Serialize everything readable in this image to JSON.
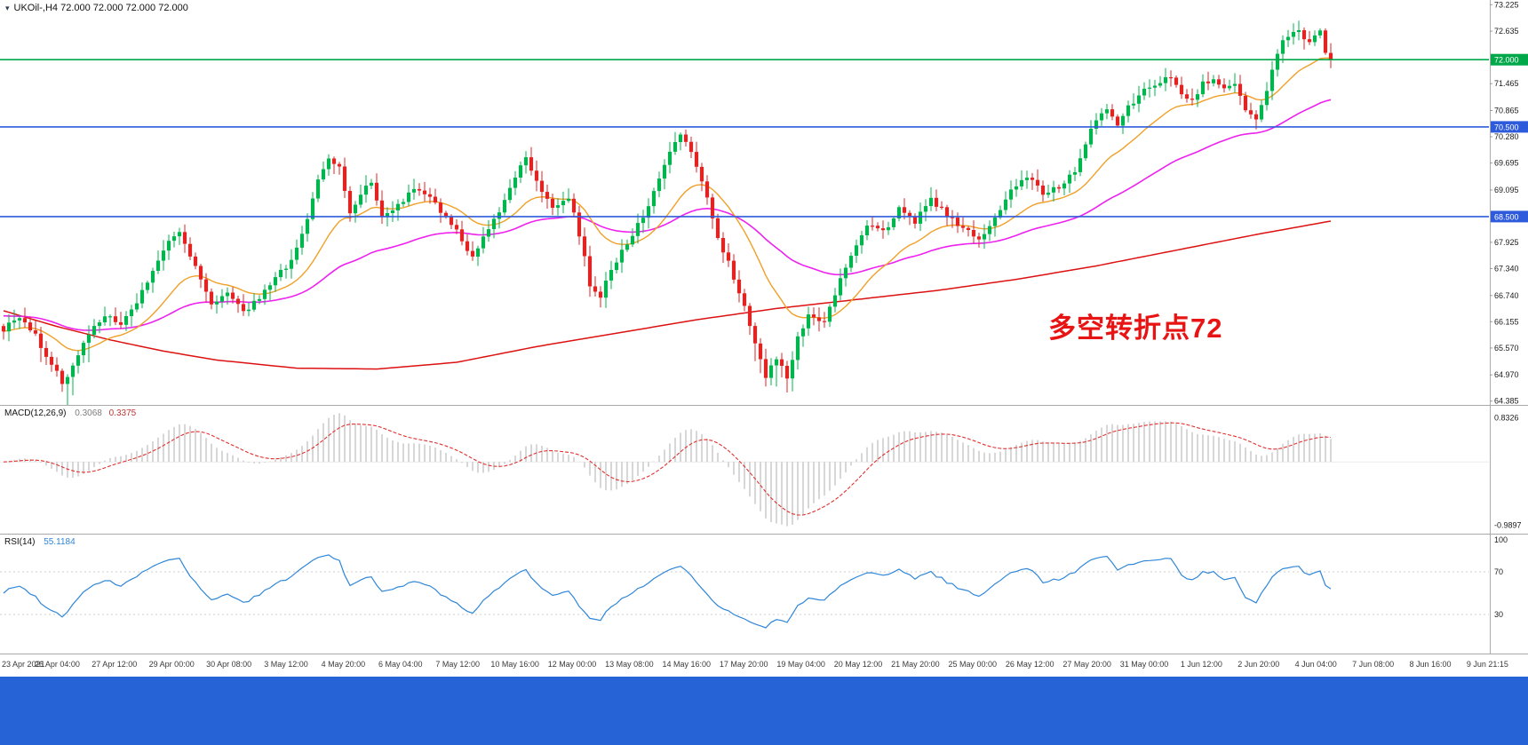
{
  "main_chart": {
    "title": "UKOil-,H4   72.000 72.000 72.000 72.000",
    "marker_icon": "▾",
    "annotation": {
      "text": "多空转折点72",
      "color": "#e81414"
    }
  },
  "chart_data": {
    "type": "candlestick",
    "symbol": "UKOil-",
    "timeframe": "H4",
    "current_ohlc": {
      "open": "72.000",
      "high": "72.000",
      "low": "72.000",
      "close": "72.000"
    },
    "bars": 250,
    "up_color": "#00b44e",
    "down_color": "#e32222",
    "price_axis": {
      "range": [
        64.32,
        73.33
      ],
      "ticks": [
        "73.225",
        "72.635",
        "71.465",
        "70.865",
        "70.280",
        "69.695",
        "69.095",
        "67.925",
        "67.340",
        "66.740",
        "66.155",
        "65.570",
        "64.970",
        "64.385"
      ]
    },
    "horizontal_lines": [
      {
        "price": 72.0,
        "label": "72.000",
        "color": "#00a84a"
      },
      {
        "price": 70.5,
        "label": "70.500",
        "color": "#2e5bdc"
      },
      {
        "price": 68.5,
        "label": "68.500",
        "color": "#2e5bdc"
      }
    ],
    "close_path_anchors": [
      [
        0,
        66.0
      ],
      [
        3,
        66.25
      ],
      [
        6,
        65.85
      ],
      [
        9,
        65.2
      ],
      [
        11,
        64.8
      ],
      [
        13,
        65.15
      ],
      [
        16,
        65.9
      ],
      [
        19,
        66.3
      ],
      [
        22,
        66.05
      ],
      [
        25,
        66.6
      ],
      [
        28,
        67.3
      ],
      [
        31,
        67.9
      ],
      [
        33,
        68.15
      ],
      [
        35,
        67.6
      ],
      [
        37,
        67.1
      ],
      [
        39,
        66.6
      ],
      [
        42,
        66.75
      ],
      [
        45,
        66.35
      ],
      [
        48,
        66.7
      ],
      [
        51,
        67.1
      ],
      [
        54,
        67.55
      ],
      [
        57,
        68.4
      ],
      [
        59,
        69.3
      ],
      [
        61,
        69.8
      ],
      [
        63,
        69.55
      ],
      [
        65,
        68.6
      ],
      [
        67,
        69.0
      ],
      [
        69,
        69.3
      ],
      [
        71,
        68.5
      ],
      [
        74,
        68.75
      ],
      [
        77,
        69.15
      ],
      [
        80,
        68.9
      ],
      [
        83,
        68.5
      ],
      [
        86,
        68.0
      ],
      [
        88,
        67.6
      ],
      [
        90,
        68.0
      ],
      [
        93,
        68.6
      ],
      [
        96,
        69.4
      ],
      [
        98,
        69.85
      ],
      [
        100,
        69.3
      ],
      [
        103,
        68.7
      ],
      [
        106,
        68.95
      ],
      [
        108,
        68.1
      ],
      [
        110,
        67.0
      ],
      [
        112,
        66.75
      ],
      [
        114,
        67.3
      ],
      [
        117,
        67.9
      ],
      [
        120,
        68.5
      ],
      [
        123,
        69.4
      ],
      [
        125,
        69.95
      ],
      [
        127,
        70.3
      ],
      [
        129,
        69.95
      ],
      [
        131,
        69.35
      ],
      [
        133,
        68.4
      ],
      [
        135,
        67.75
      ],
      [
        137,
        67.15
      ],
      [
        139,
        66.55
      ],
      [
        141,
        65.7
      ],
      [
        143,
        64.95
      ],
      [
        145,
        65.35
      ],
      [
        147,
        64.9
      ],
      [
        149,
        65.8
      ],
      [
        151,
        66.35
      ],
      [
        154,
        66.1
      ],
      [
        157,
        67.1
      ],
      [
        160,
        67.9
      ],
      [
        162,
        68.35
      ],
      [
        165,
        68.15
      ],
      [
        168,
        68.65
      ],
      [
        171,
        68.4
      ],
      [
        174,
        68.85
      ],
      [
        177,
        68.55
      ],
      [
        180,
        68.25
      ],
      [
        183,
        67.95
      ],
      [
        186,
        68.45
      ],
      [
        189,
        69.1
      ],
      [
        192,
        69.4
      ],
      [
        195,
        69.0
      ],
      [
        198,
        69.15
      ],
      [
        201,
        69.55
      ],
      [
        203,
        70.1
      ],
      [
        205,
        70.7
      ],
      [
        207,
        70.95
      ],
      [
        209,
        70.5
      ],
      [
        211,
        70.95
      ],
      [
        213,
        71.2
      ],
      [
        216,
        71.45
      ],
      [
        219,
        71.6
      ],
      [
        221,
        71.2
      ],
      [
        223,
        71.05
      ],
      [
        225,
        71.45
      ],
      [
        227,
        71.6
      ],
      [
        229,
        71.3
      ],
      [
        231,
        71.5
      ],
      [
        233,
        70.85
      ],
      [
        235,
        70.7
      ],
      [
        237,
        71.3
      ],
      [
        239,
        72.2
      ],
      [
        241,
        72.55
      ],
      [
        243,
        72.6
      ],
      [
        245,
        72.45
      ],
      [
        247,
        72.65
      ],
      [
        248,
        72.15
      ],
      [
        249,
        72.0
      ]
    ],
    "moving_averages": [
      {
        "name": "slow-red",
        "color": "#dd1111",
        "width": 1.5,
        "anchors": [
          [
            0,
            66.4
          ],
          [
            10,
            66.05
          ],
          [
            20,
            65.75
          ],
          [
            30,
            65.5
          ],
          [
            40,
            65.3
          ],
          [
            55,
            65.12
          ],
          [
            70,
            65.1
          ],
          [
            85,
            65.25
          ],
          [
            100,
            65.6
          ],
          [
            115,
            65.9
          ],
          [
            130,
            66.2
          ],
          [
            145,
            66.45
          ],
          [
            160,
            66.65
          ],
          [
            175,
            66.85
          ],
          [
            190,
            67.1
          ],
          [
            205,
            67.4
          ],
          [
            220,
            67.75
          ],
          [
            235,
            68.1
          ],
          [
            249,
            68.4
          ]
        ]
      },
      {
        "name": "mid-magenta",
        "color": "#ee22ee",
        "width": 1.6,
        "period": 55,
        "seed": 66.3
      },
      {
        "name": "fast-orange",
        "color": "#f0a028",
        "width": 1.4,
        "period": 18
      }
    ],
    "macd": {
      "fast": 12,
      "slow": 26,
      "signal": 9
    },
    "rsi": {
      "period": 14,
      "levels": [
        70,
        30
      ]
    }
  },
  "macd_panel": {
    "title": "MACD(12,26,9)",
    "main_value": "0.3068",
    "signal_value": "0.3375",
    "axis_max": "0.8326",
    "axis_min": "-0.9897",
    "histogram_color": "#c6c6c6",
    "signal_color": "#e03030"
  },
  "rsi_panel": {
    "title": "RSI(14)",
    "value": "55.1184",
    "line_color": "#2f86d8",
    "axis_labels": [
      {
        "text": "100",
        "value": 100
      },
      {
        "text": "70",
        "value": 70
      },
      {
        "text": "30",
        "value": 30
      }
    ]
  },
  "time_axis": {
    "labels": [
      "23 Apr 2021",
      "26 Apr 04:00",
      "27 Apr 12:00",
      "29 Apr 00:00",
      "30 Apr 08:00",
      "3 May 12:00",
      "4 May 20:00",
      "6 May 04:00",
      "7 May 12:00",
      "10 May 16:00",
      "12 May 00:00",
      "13 May 08:00",
      "14 May 16:00",
      "17 May 20:00",
      "19 May 04:00",
      "20 May 12:00",
      "21 May 20:00",
      "25 May 00:00",
      "26 May 12:00",
      "27 May 20:00",
      "31 May 00:00",
      "1 Jun 12:00",
      "2 Jun 20:00",
      "4 Jun 04:00",
      "7 Jun 08:00",
      "8 Jun 16:00",
      "9 Jun 21:15"
    ]
  },
  "taskbar": {
    "color": "#2563d6"
  }
}
